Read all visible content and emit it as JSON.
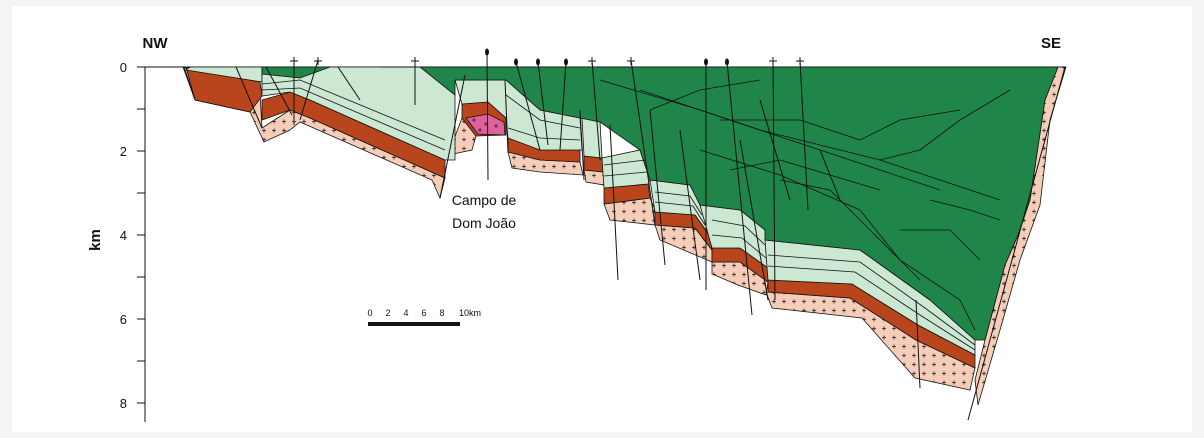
{
  "section": {
    "left_end": "NW",
    "right_end": "SE",
    "depth_axis": {
      "title": "km",
      "ticks": [
        "0",
        "2",
        "4",
        "6",
        "8"
      ]
    },
    "annotation": {
      "line1": "Campo de",
      "line2": "Dom João"
    },
    "scale_bar": {
      "labels": [
        "0",
        "2",
        "4",
        "6",
        "8",
        "10km"
      ]
    }
  },
  "colors": {
    "basement": "#f6cdb8",
    "red_layer": "#b8451b",
    "light_green": "#cce7d2",
    "dark_green": "#1f8548",
    "pink_high": "#e0609c"
  }
}
